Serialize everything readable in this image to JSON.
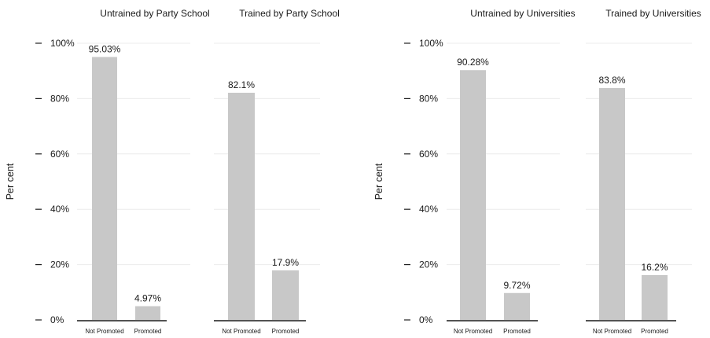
{
  "chart_data": [
    {
      "type": "bar",
      "ylabel": "Per cent",
      "ylim": [
        0,
        100
      ],
      "yticks": [
        "0%",
        "20%",
        "40%",
        "60%",
        "80%",
        "100%"
      ],
      "grid": true,
      "bar_color": "#c8c8c8",
      "panels": [
        {
          "title": "Untrained by Party School",
          "categories": [
            "Not Promoted",
            "Promoted"
          ],
          "values": [
            95.03,
            4.97
          ],
          "labels": [
            "95.03%",
            "4.97%"
          ]
        },
        {
          "title": "Trained by Party School",
          "categories": [
            "Not Promoted",
            "Promoted"
          ],
          "values": [
            82.1,
            17.9
          ],
          "labels": [
            "82.1%",
            "17.9%"
          ]
        }
      ]
    },
    {
      "type": "bar",
      "ylabel": "Per cent",
      "ylim": [
        0,
        100
      ],
      "yticks": [
        "0%",
        "20%",
        "40%",
        "60%",
        "80%",
        "100%"
      ],
      "grid": true,
      "bar_color": "#c8c8c8",
      "panels": [
        {
          "title": "Untrained by Universities",
          "categories": [
            "Not Promoted",
            "Promoted"
          ],
          "values": [
            90.28,
            9.72
          ],
          "labels": [
            "90.28%",
            "9.72%"
          ]
        },
        {
          "title": "Trained by Universities",
          "categories": [
            "Not Promoted",
            "Promoted"
          ],
          "values": [
            83.8,
            16.2
          ],
          "labels": [
            "83.8%",
            "16.2%"
          ]
        }
      ]
    }
  ]
}
